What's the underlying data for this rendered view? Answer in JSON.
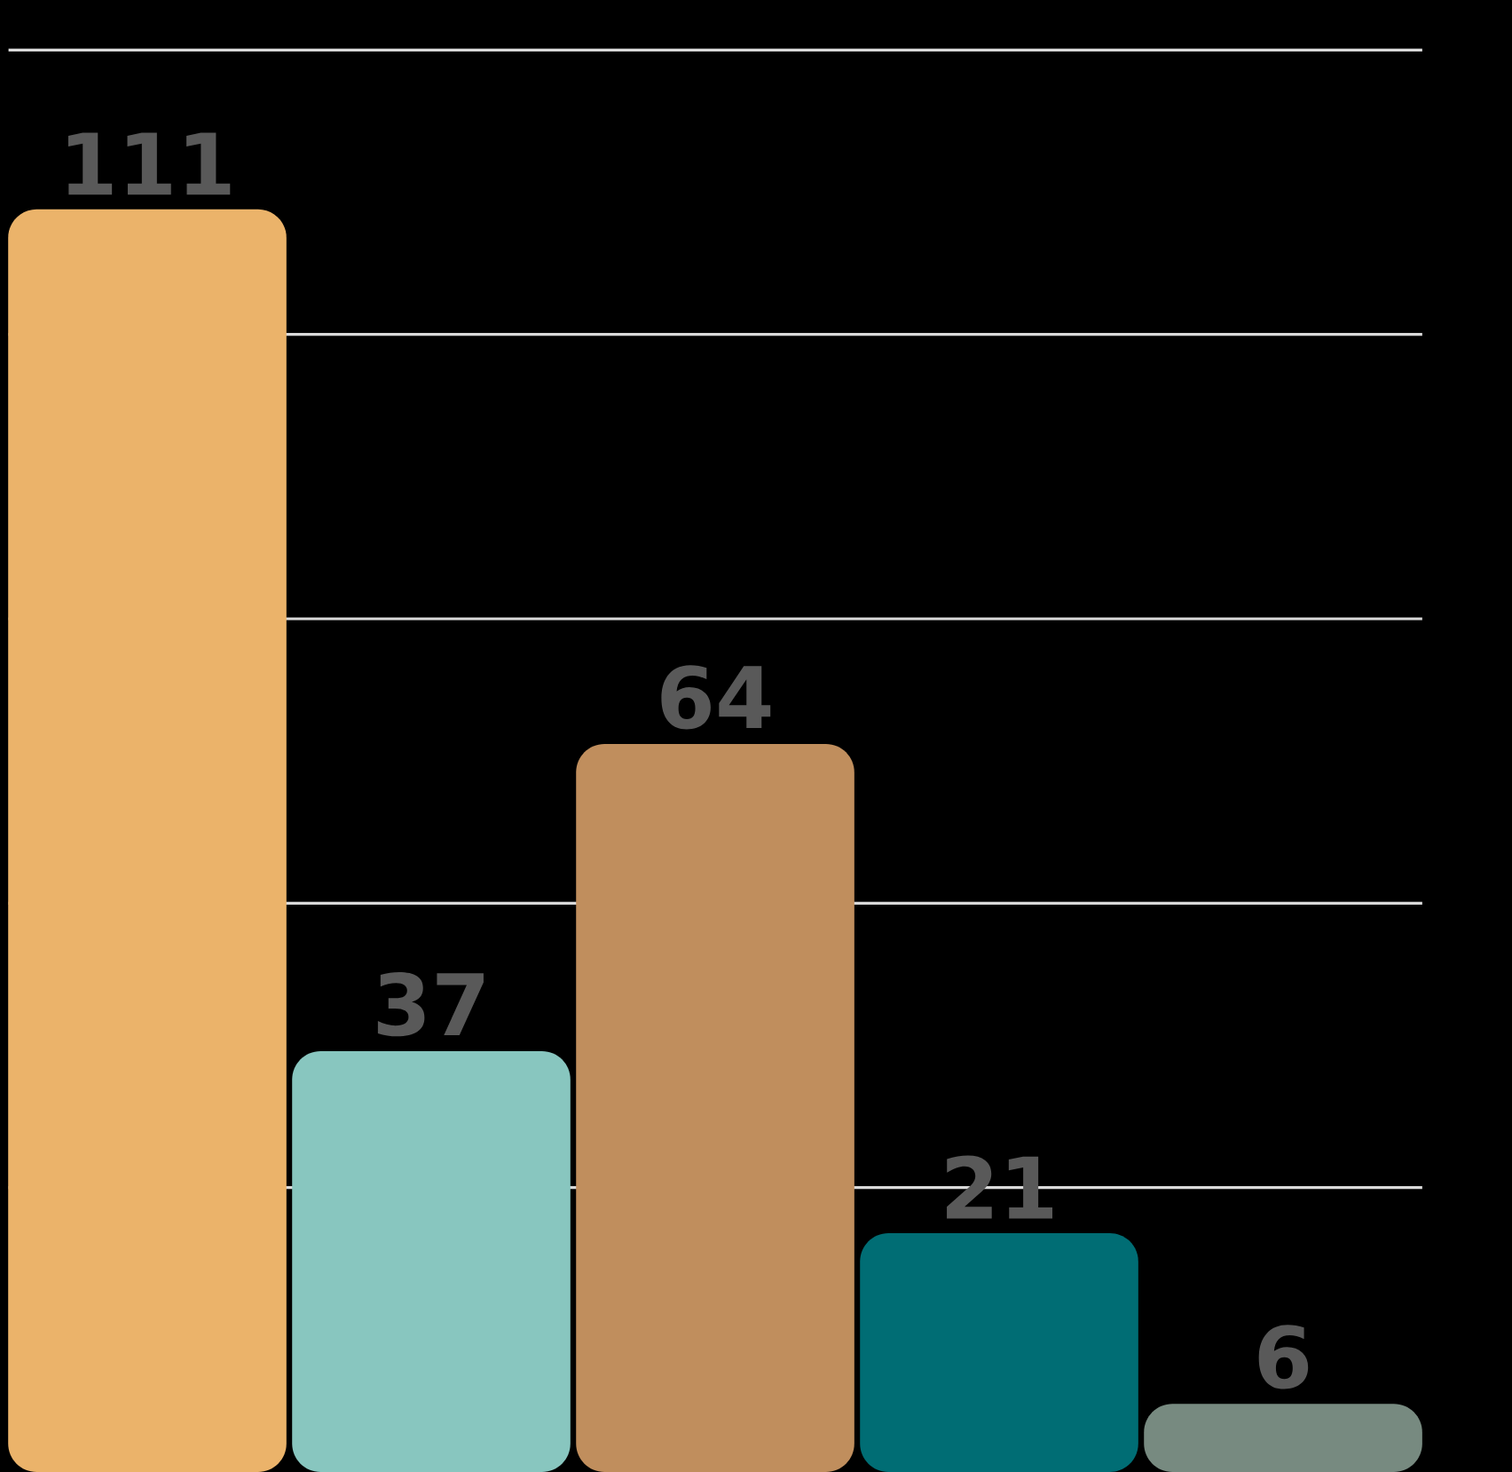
{
  "chart_data": {
    "type": "bar",
    "categories": [
      null,
      null,
      null,
      null,
      null
    ],
    "values": [
      111,
      37,
      64,
      21,
      6
    ],
    "colors": [
      "#ebb36a",
      "#88c6bf",
      "#c08e5d",
      "#006d74",
      "#778a80"
    ],
    "data_labels": true,
    "ylim": [
      0,
      129.4
    ],
    "yticks": [
      {
        "value": 25,
        "label": null
      },
      {
        "value": 50,
        "label": null
      },
      {
        "value": 75,
        "label": null
      },
      {
        "value": 100,
        "label": null
      },
      {
        "value": 125,
        "label": null
      }
    ],
    "grid": "y",
    "tick_labels": false
  }
}
